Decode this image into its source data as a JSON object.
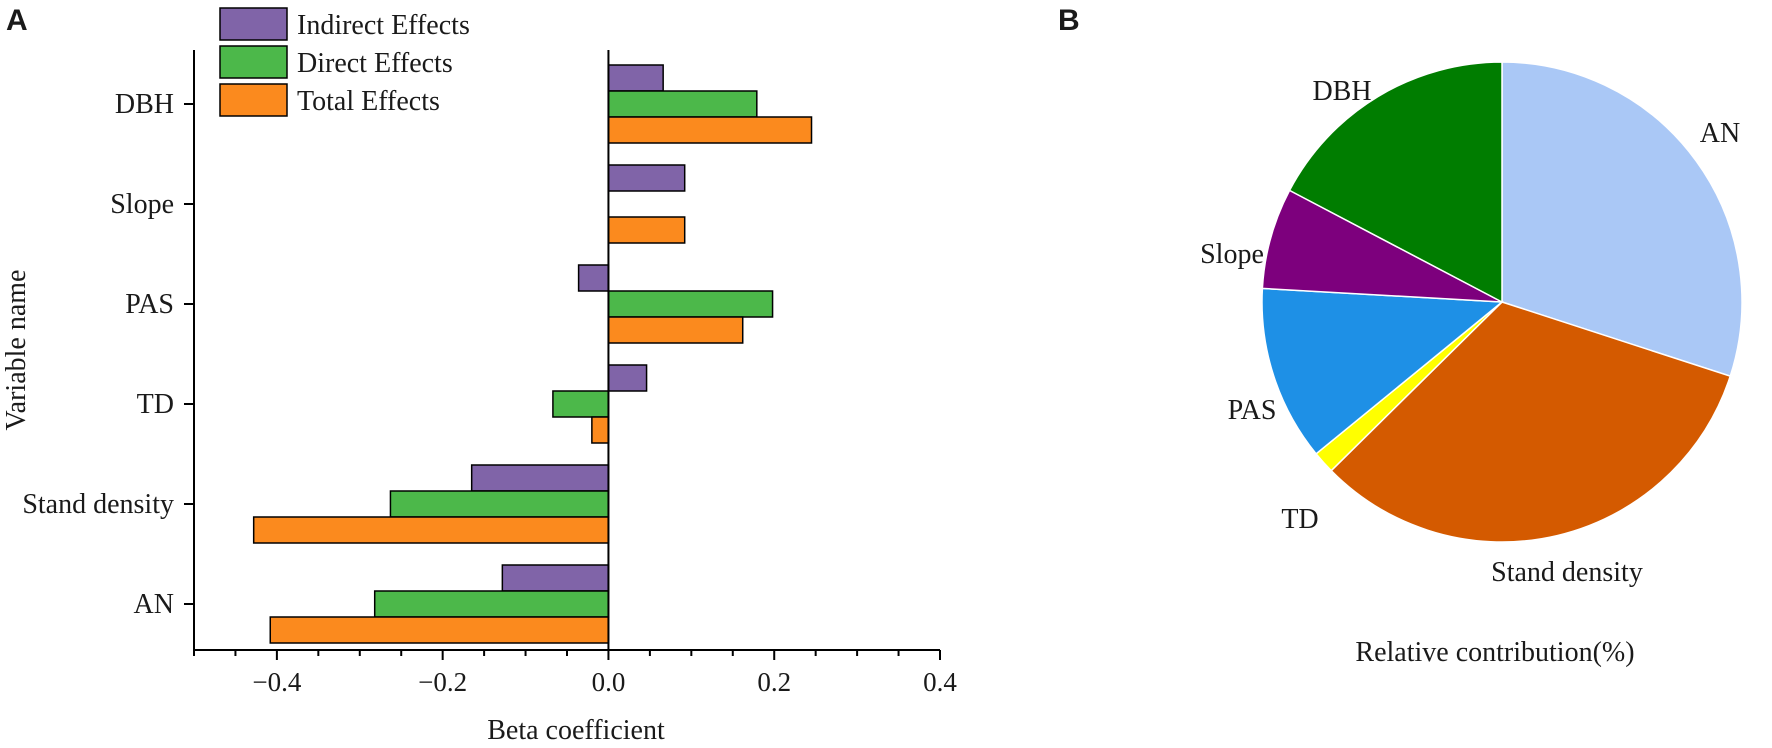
{
  "panels": {
    "a": "A",
    "b": "B"
  },
  "chart_data": [
    {
      "type": "bar",
      "orientation": "horizontal",
      "categories": [
        "DBH",
        "Slope",
        "PAS",
        "TD",
        "Stand density",
        "AN"
      ],
      "series": [
        {
          "name": "Indirect Effects",
          "color": "#8064a8",
          "values": [
            0.066,
            0.092,
            -0.036,
            0.046,
            -0.165,
            -0.128
          ]
        },
        {
          "name": "Direct Effects",
          "color": "#4cb84a",
          "values": [
            0.179,
            0.0,
            0.198,
            -0.067,
            -0.263,
            -0.282
          ]
        },
        {
          "name": "Total Effects",
          "color": "#fb8a1e",
          "values": [
            0.245,
            0.092,
            0.162,
            -0.02,
            -0.428,
            -0.408
          ]
        }
      ],
      "xlabel": "Beta coefficient",
      "ylabel": "Variable name",
      "xlim": [
        -0.5,
        0.4
      ],
      "xticks": [
        -0.4,
        -0.2,
        0.0,
        0.2,
        0.4
      ],
      "xtick_labels": [
        "−0.4",
        "−0.2",
        "0.0",
        "0.2",
        "0.4"
      ],
      "legend_position": "top-left"
    },
    {
      "type": "pie",
      "title": "Relative contribution(%)",
      "slices": [
        {
          "label": "AN",
          "value": 30.0,
          "color": "#aac8f6"
        },
        {
          "label": "Stand density",
          "value": 32.6,
          "color": "#d45a00"
        },
        {
          "label": "TD",
          "value": 1.5,
          "color": "#ffff00"
        },
        {
          "label": "PAS",
          "value": 11.8,
          "color": "#1e90e6"
        },
        {
          "label": "Slope",
          "value": 6.8,
          "color": "#7d007d"
        },
        {
          "label": "DBH",
          "value": 17.3,
          "color": "#007d00"
        }
      ]
    }
  ]
}
